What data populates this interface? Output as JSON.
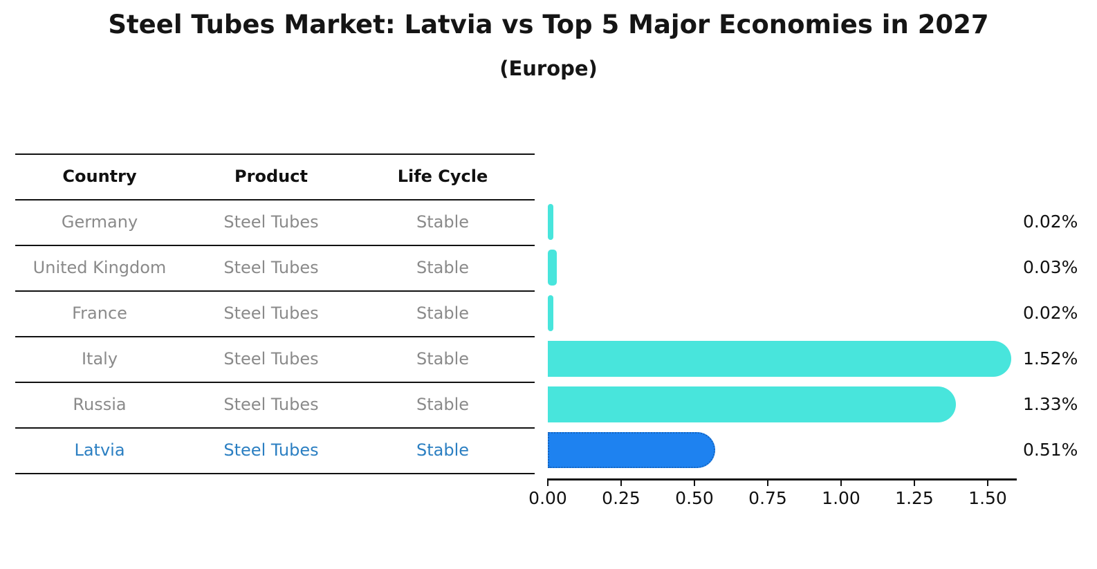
{
  "header": {
    "title": "Steel Tubes Market: Latvia vs Top 5 Major Economies in 2027",
    "subtitle": "(Europe)"
  },
  "table": {
    "columns": [
      "Country",
      "Product",
      "Life Cycle"
    ],
    "rows": [
      {
        "country": "Germany",
        "product": "Steel Tubes",
        "life_cycle": "Stable"
      },
      {
        "country": "United Kingdom",
        "product": "Steel Tubes",
        "life_cycle": "Stable"
      },
      {
        "country": "France",
        "product": "Steel Tubes",
        "life_cycle": "Stable"
      },
      {
        "country": "Italy",
        "product": "Steel Tubes",
        "life_cycle": "Stable"
      },
      {
        "country": "Russia",
        "product": "Steel Tubes",
        "life_cycle": "Stable"
      },
      {
        "country": "Latvia",
        "product": "Steel Tubes",
        "life_cycle": "Stable"
      }
    ],
    "highlight_row": "Latvia"
  },
  "chart_data": {
    "type": "bar",
    "orientation": "horizontal",
    "title": "Steel Tubes Market: Latvia vs Top 5 Major Economies in 2027",
    "subtitle": "(Europe)",
    "categories": [
      "Germany",
      "United Kingdom",
      "France",
      "Italy",
      "Russia",
      "Latvia"
    ],
    "values": [
      0.02,
      0.03,
      0.02,
      1.52,
      1.33,
      0.51
    ],
    "value_labels": [
      "0.02%",
      "0.03%",
      "0.02%",
      "1.52%",
      "1.33%",
      "0.51%"
    ],
    "x_ticks": [
      0.0,
      0.25,
      0.5,
      0.75,
      1.0,
      1.25,
      1.5
    ],
    "x_tick_labels": [
      "0.00",
      "0.25",
      "0.50",
      "0.75",
      "1.00",
      "1.25",
      "1.50"
    ],
    "xlim": [
      0,
      1.6
    ],
    "grid": false,
    "legend": false,
    "highlight_index": 5
  },
  "colors": {
    "bar": "#48E5DC",
    "highlight_bar": "#1E82F0",
    "highlight_border": "#1565C0",
    "highlight_text": "#2B7FC2",
    "row_text": "#8A8A8A",
    "header_text": "#111111",
    "axis": "#111111"
  }
}
